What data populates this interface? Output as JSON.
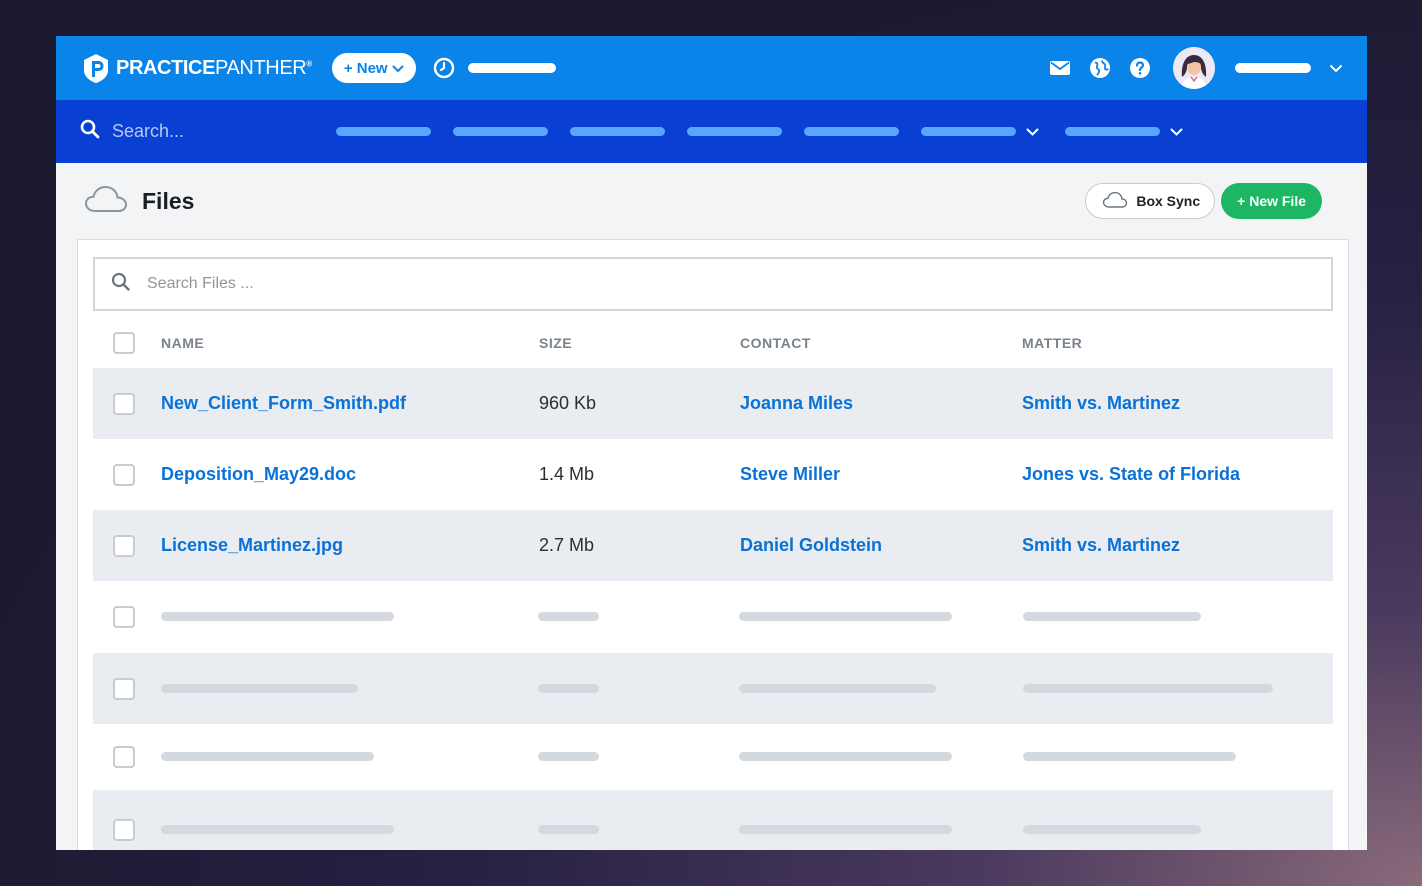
{
  "app": {
    "logo_bold": "PRACTICE",
    "logo_light": "PANTHER",
    "logo_mark": "®",
    "new_button": "+ New"
  },
  "nav": {
    "search_placeholder": "Search..."
  },
  "page": {
    "title": "Files",
    "box_sync_label": "Box Sync",
    "new_file_label": "+ New File"
  },
  "files_search": {
    "placeholder": "Search Files ..."
  },
  "table": {
    "columns": [
      "NAME",
      "SIZE",
      "CONTACT",
      "MATTER"
    ],
    "rows": [
      {
        "name": "New_Client_Form_Smith.pdf",
        "size": "960 Kb",
        "contact": "Joanna Miles",
        "matter": "Smith vs. Martinez"
      },
      {
        "name": "Deposition_May29.doc",
        "size": "1.4 Mb",
        "contact": "Steve Miller",
        "matter": "Jones vs. State of Florida"
      },
      {
        "name": "License_Martinez.jpg",
        "size": "2.7 Mb",
        "contact": "Daniel Goldstein",
        "matter": "Smith vs. Martinez"
      }
    ]
  },
  "colors": {
    "topbar": "#0a84e8",
    "navbar": "#0a3fd4",
    "link": "#0a72d6",
    "new_file_button": "#1db764"
  }
}
